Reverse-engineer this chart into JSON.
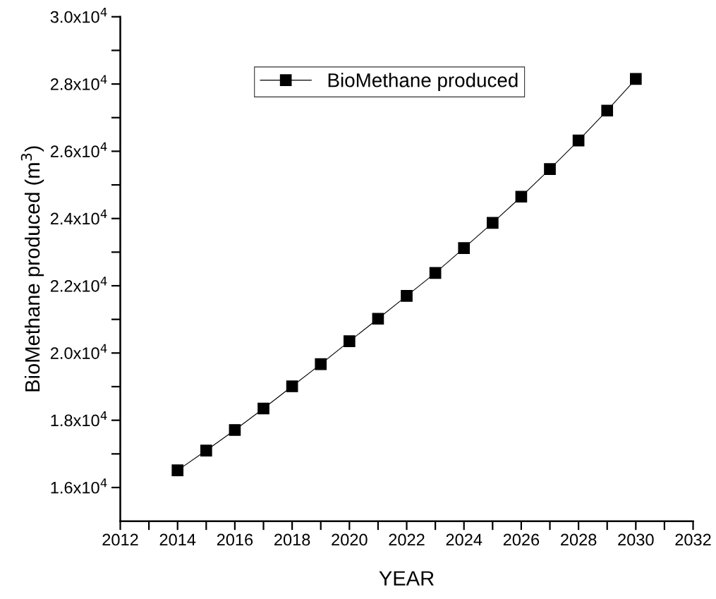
{
  "chart_data": {
    "type": "line",
    "xlabel": "YEAR",
    "ylabel": "BioMethane produced (m$^{3}$)",
    "x": [
      2014,
      2015,
      2016,
      2017,
      2018,
      2019,
      2020,
      2021,
      2022,
      2023,
      2024,
      2025,
      2026,
      2027,
      2028,
      2029,
      2030
    ],
    "series": [
      {
        "name": "BioMethane produced",
        "color": "#000000",
        "values": [
          16510,
          17100,
          17710,
          18350,
          19010,
          19670,
          20350,
          21020,
          21700,
          22380,
          23120,
          23870,
          24650,
          25470,
          26320,
          27210,
          28150
        ]
      }
    ],
    "marker": "square",
    "line_style": "solid",
    "legend": "top",
    "grid": false,
    "xlim": [
      2012,
      2032
    ],
    "xticks": [
      2012,
      {
        "value": 2013,
        "label": null
      },
      2014,
      {
        "value": 2015,
        "label": null
      },
      2016,
      {
        "value": 2017,
        "label": null
      },
      2018,
      {
        "value": 2019,
        "label": null
      },
      2020,
      {
        "value": 2021,
        "label": null
      },
      2022,
      {
        "value": 2023,
        "label": null
      },
      2024,
      {
        "value": 2025,
        "label": null
      },
      2026,
      {
        "value": 2027,
        "label": null
      },
      2028,
      {
        "value": 2029,
        "label": null
      },
      2030,
      {
        "value": 2031,
        "label": null
      },
      2032
    ],
    "ylim": [
      15000,
      30000
    ],
    "yticks": [
      {
        "value": 16000,
        "label": "1.6x10$^{4}$"
      },
      {
        "value": 17000,
        "label": null
      },
      {
        "value": 18000,
        "label": "1.8x10$^{4}$"
      },
      {
        "value": 19000,
        "label": null
      },
      {
        "value": 20000,
        "label": "2.0x10$^{4}$"
      },
      {
        "value": 21000,
        "label": null
      },
      {
        "value": 22000,
        "label": "2.2x10$^{4}$"
      },
      {
        "value": 23000,
        "label": null
      },
      {
        "value": 24000,
        "label": "2.4x10$^{4}$"
      },
      {
        "value": 25000,
        "label": null
      },
      {
        "value": 26000,
        "label": "2.6x10$^{4}$"
      },
      {
        "value": 27000,
        "label": null
      },
      {
        "value": 28000,
        "label": "2.8x10$^{4}$"
      },
      {
        "value": 29000,
        "label": null
      },
      {
        "value": 30000,
        "label": "3.0x10$^{4}$"
      }
    ]
  }
}
